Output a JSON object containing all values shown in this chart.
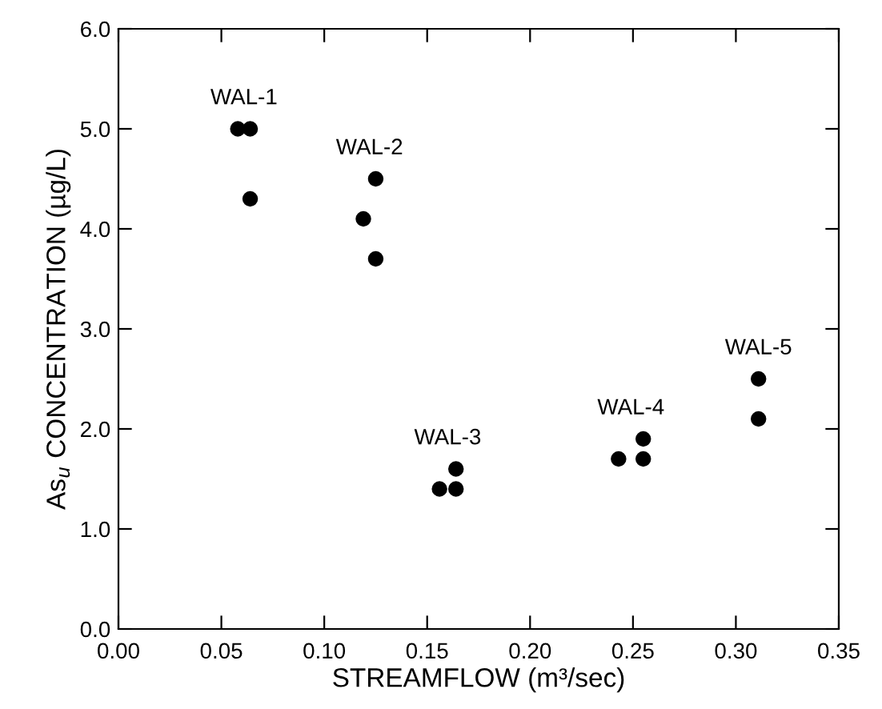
{
  "chart_data": {
    "type": "scatter",
    "xlabel": "STREAMFLOW (m³/sec)",
    "ylabel": "As$_{u}$ CONCENTRATION (µg/L)",
    "x": [
      0.058,
      0.064,
      0.064,
      0.125,
      0.119,
      0.125,
      0.164,
      0.156,
      0.164,
      0.243,
      0.255,
      0.255,
      0.311,
      0.311
    ],
    "series": [
      {
        "color": "#000000",
        "values": [
          5.0,
          5.0,
          4.3,
          4.5,
          4.1,
          3.7,
          1.6,
          1.4,
          1.4,
          1.7,
          1.9,
          1.7,
          2.5,
          2.1
        ]
      }
    ],
    "marker": "circle",
    "xlim": [
      0.0,
      0.35
    ],
    "xticks": [
      {
        "value": 0,
        "label": "0.00"
      },
      0.05,
      {
        "value": 0.1,
        "label": "0.10"
      },
      0.15,
      {
        "value": 0.2,
        "label": "0.20"
      },
      0.25,
      {
        "value": 0.3,
        "label": "0.30"
      },
      0.35
    ],
    "ylim": [
      0.0,
      6.0
    ],
    "yticks": [
      {
        "value": 0,
        "label": "0.0"
      },
      {
        "value": 1,
        "label": "1.0"
      },
      {
        "value": 2,
        "label": "2.0"
      },
      {
        "value": 3,
        "label": "3.0"
      },
      {
        "value": 4,
        "label": "4.0"
      },
      {
        "value": 5,
        "label": "5.0"
      },
      {
        "value": 6,
        "label": "6.0"
      }
    ],
    "annotations": [
      {
        "text": "WAL-1",
        "x": 0.061,
        "y": 5.0
      },
      {
        "text": "WAL-2",
        "x": 0.122,
        "y": 4.5
      },
      {
        "text": "WAL-3",
        "x": 0.16,
        "y": 1.6
      },
      {
        "text": "WAL-4",
        "x": 0.249,
        "y": 1.9
      },
      {
        "text": "WAL-5",
        "x": 0.311,
        "y": 2.5
      }
    ],
    "grid": false,
    "legend": false
  }
}
